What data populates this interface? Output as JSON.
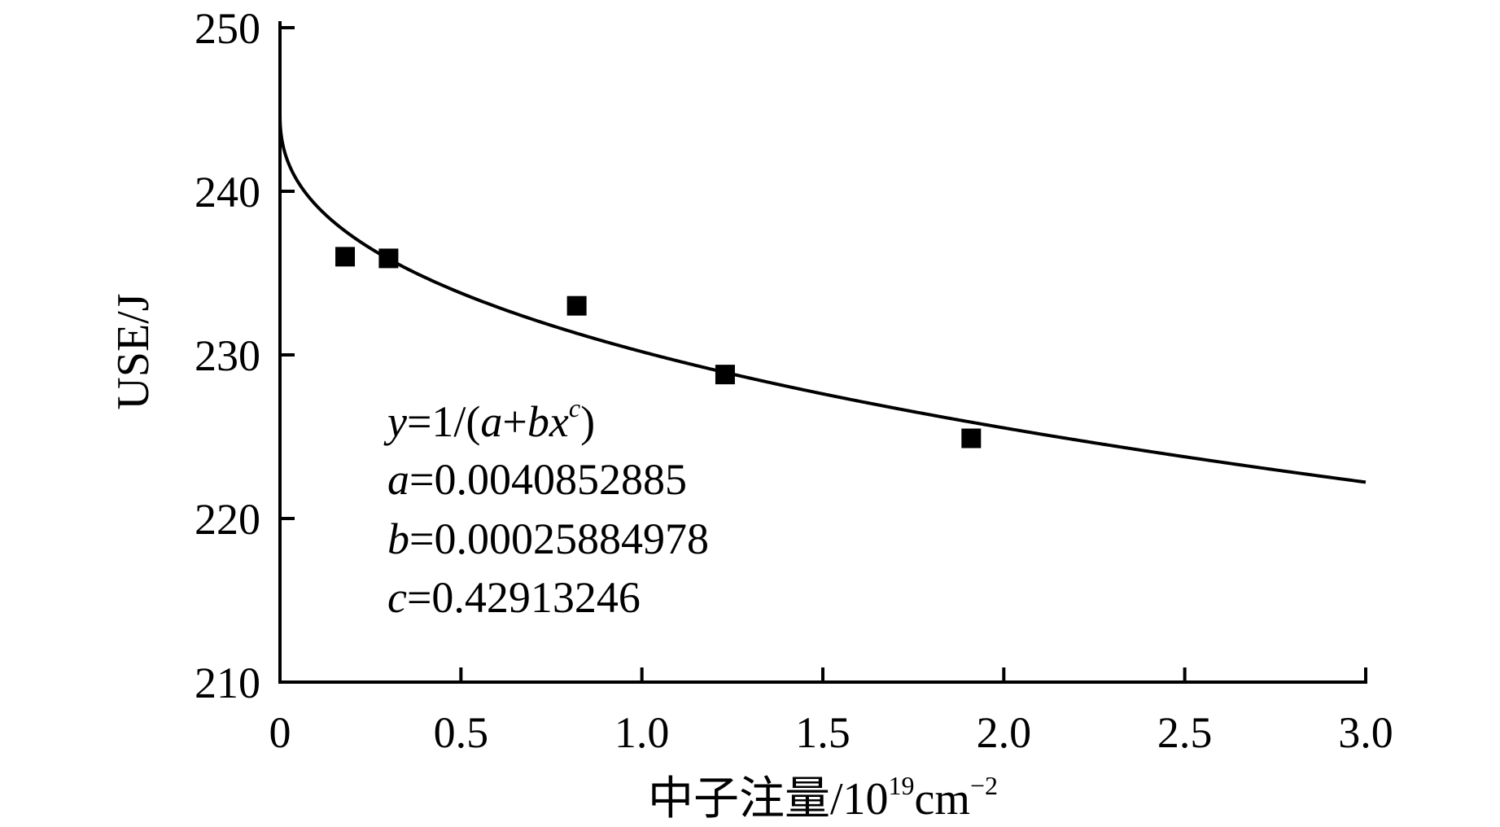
{
  "chart_data": {
    "type": "scatter",
    "xlabel_main": "中子注量/10",
    "xlabel_exp": "19",
    "xlabel_unit": "cm",
    "xlabel_unit_exp": "−2",
    "ylabel": "USE/J",
    "xlim": [
      0,
      3.0
    ],
    "ylim": [
      210,
      250
    ],
    "x_ticks": [
      0,
      0.5,
      1.0,
      1.5,
      2.0,
      2.5,
      3.0
    ],
    "x_tick_labels": [
      "0",
      "0.5",
      "1.0",
      "1.5",
      "2.0",
      "2.5",
      "3.0"
    ],
    "y_ticks": [
      210,
      220,
      230,
      240,
      250
    ],
    "y_tick_labels": [
      "210",
      "220",
      "230",
      "240",
      "250"
    ],
    "grid": false,
    "series": [
      {
        "type": "scatter",
        "marker": "square",
        "color": "#000000",
        "x": [
          0.18,
          0.3,
          0.82,
          1.23,
          1.91
        ],
        "y": [
          236.0,
          235.9,
          233.0,
          228.8,
          224.9
        ]
      },
      {
        "type": "line",
        "color": "#000000",
        "fit": {
          "a": 0.0040852885,
          "b": 0.00025884978,
          "c": 0.42913246
        }
      }
    ],
    "annotation": {
      "formula": {
        "y": "y",
        "eq1": "=1/(",
        "a": "a",
        "plus": "+",
        "bx": "bx",
        "c": "c",
        "close": ")"
      },
      "a_line": {
        "var": "a",
        "val": "=0.0040852885"
      },
      "b_line": {
        "var": "b",
        "val": "=0.00025884978"
      },
      "c_line": {
        "var": "c",
        "val": "=0.42913246"
      }
    }
  }
}
